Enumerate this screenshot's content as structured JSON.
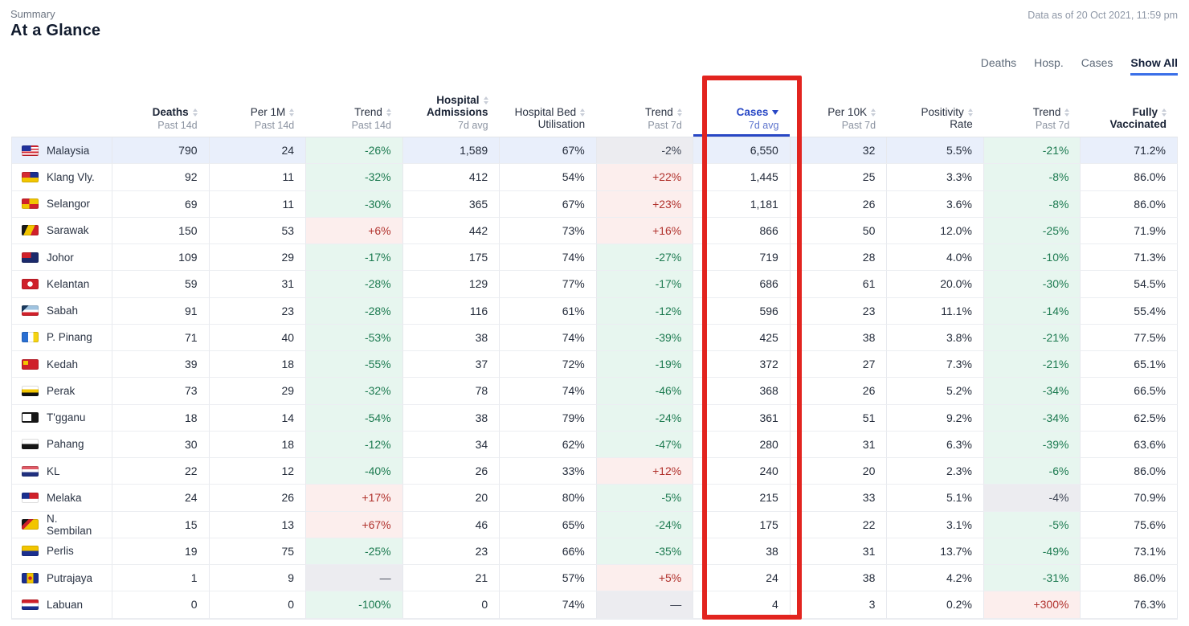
{
  "page": {
    "eyebrow": "Summary",
    "title": "At a Glance",
    "data_as_of": "Data as of 20 Oct 2021, 11:59 pm"
  },
  "view_tabs": [
    {
      "label": "Deaths",
      "active": false
    },
    {
      "label": "Hosp.",
      "active": false
    },
    {
      "label": "Cases",
      "active": false
    },
    {
      "label": "Show All",
      "active": true
    }
  ],
  "colors": {
    "accent_blue": "#2847c5",
    "show_all_underline": "#3a6fe8",
    "trend_down_green_text": "#1c7a50",
    "trend_down_green_bg": "#e7f6ef",
    "trend_up_red_text": "#b0312c",
    "trend_up_red_bg": "#fceeed",
    "neutral_bg": "#ececf0",
    "highlight_row_bg": "#e9effb",
    "cases_annotation_red": "#e2241f"
  },
  "table": {
    "columns": [
      {
        "key": "region",
        "lines": [],
        "sub": "",
        "bold": false,
        "sortable": false,
        "accent": false,
        "sorted": null
      },
      {
        "key": "deaths",
        "lines": [
          "Deaths"
        ],
        "sub": "Past 14d",
        "bold": true,
        "sortable": true,
        "accent": false,
        "sorted": null
      },
      {
        "key": "per-1m",
        "lines": [
          "Per 1M"
        ],
        "sub": "Past 14d",
        "bold": false,
        "sortable": true,
        "accent": false,
        "sorted": null
      },
      {
        "key": "trend-14d",
        "lines": [
          "Trend"
        ],
        "sub": "Past 14d",
        "bold": false,
        "sortable": true,
        "accent": false,
        "sorted": null
      },
      {
        "key": "hospital-admissions",
        "lines": [
          "Hospital",
          "Admissions"
        ],
        "sub": "7d avg",
        "bold": true,
        "sortable": true,
        "accent": false,
        "sorted": null
      },
      {
        "key": "hospital-bed-utilisation",
        "lines": [
          "Hospital Bed",
          "Utilisation"
        ],
        "sub": "",
        "bold": false,
        "sortable": true,
        "accent": false,
        "sorted": null
      },
      {
        "key": "trend-7d-hosp",
        "lines": [
          "Trend"
        ],
        "sub": "Past 7d",
        "bold": false,
        "sortable": true,
        "accent": false,
        "sorted": null
      },
      {
        "key": "cases",
        "lines": [
          "Cases"
        ],
        "sub": "7d avg",
        "bold": true,
        "sortable": true,
        "accent": true,
        "sorted": "desc"
      },
      {
        "key": "per-10k",
        "lines": [
          "Per 10K"
        ],
        "sub": "Past 7d",
        "bold": false,
        "sortable": true,
        "accent": false,
        "sorted": null
      },
      {
        "key": "positivity-rate",
        "lines": [
          "Positivity",
          "Rate"
        ],
        "sub": "",
        "bold": false,
        "sortable": true,
        "accent": false,
        "sorted": null
      },
      {
        "key": "trend-7d-cases",
        "lines": [
          "Trend"
        ],
        "sub": "Past 7d",
        "bold": false,
        "sortable": true,
        "accent": false,
        "sorted": null
      },
      {
        "key": "fully-vaccinated",
        "lines": [
          "Fully",
          "Vaccinated"
        ],
        "sub": "",
        "bold": true,
        "sortable": true,
        "accent": false,
        "sorted": null
      }
    ],
    "rows": [
      {
        "region": "Malaysia",
        "flag": "my",
        "highlight": true,
        "cells": [
          {
            "v": "790"
          },
          {
            "v": "24"
          },
          {
            "v": "-26%",
            "tone": "good"
          },
          {
            "v": "1,589"
          },
          {
            "v": "67%"
          },
          {
            "v": "-2%",
            "tone": "neutral"
          },
          {
            "v": "6,550"
          },
          {
            "v": "32"
          },
          {
            "v": "5.5%"
          },
          {
            "v": "-21%",
            "tone": "good"
          },
          {
            "v": "71.2%"
          }
        ]
      },
      {
        "region": "Klang Vly.",
        "flag": "kv",
        "highlight": false,
        "cells": [
          {
            "v": "92"
          },
          {
            "v": "11"
          },
          {
            "v": "-32%",
            "tone": "good"
          },
          {
            "v": "412"
          },
          {
            "v": "54%"
          },
          {
            "v": "+22%",
            "tone": "bad"
          },
          {
            "v": "1,445"
          },
          {
            "v": "25"
          },
          {
            "v": "3.3%"
          },
          {
            "v": "-8%",
            "tone": "good"
          },
          {
            "v": "86.0%"
          }
        ]
      },
      {
        "region": "Selangor",
        "flag": "sgr",
        "highlight": false,
        "cells": [
          {
            "v": "69"
          },
          {
            "v": "11"
          },
          {
            "v": "-30%",
            "tone": "good"
          },
          {
            "v": "365"
          },
          {
            "v": "67%"
          },
          {
            "v": "+23%",
            "tone": "bad"
          },
          {
            "v": "1,181"
          },
          {
            "v": "26"
          },
          {
            "v": "3.6%"
          },
          {
            "v": "-8%",
            "tone": "good"
          },
          {
            "v": "86.0%"
          }
        ]
      },
      {
        "region": "Sarawak",
        "flag": "swk",
        "highlight": false,
        "cells": [
          {
            "v": "150"
          },
          {
            "v": "53"
          },
          {
            "v": "+6%",
            "tone": "bad"
          },
          {
            "v": "442"
          },
          {
            "v": "73%"
          },
          {
            "v": "+16%",
            "tone": "bad"
          },
          {
            "v": "866"
          },
          {
            "v": "50"
          },
          {
            "v": "12.0%"
          },
          {
            "v": "-25%",
            "tone": "good"
          },
          {
            "v": "71.9%"
          }
        ]
      },
      {
        "region": "Johor",
        "flag": "jhr",
        "highlight": false,
        "cells": [
          {
            "v": "109"
          },
          {
            "v": "29"
          },
          {
            "v": "-17%",
            "tone": "good"
          },
          {
            "v": "175"
          },
          {
            "v": "74%"
          },
          {
            "v": "-27%",
            "tone": "good"
          },
          {
            "v": "719"
          },
          {
            "v": "28"
          },
          {
            "v": "4.0%"
          },
          {
            "v": "-10%",
            "tone": "good"
          },
          {
            "v": "71.3%"
          }
        ]
      },
      {
        "region": "Kelantan",
        "flag": "ktn",
        "highlight": false,
        "cells": [
          {
            "v": "59"
          },
          {
            "v": "31"
          },
          {
            "v": "-28%",
            "tone": "good"
          },
          {
            "v": "129"
          },
          {
            "v": "77%"
          },
          {
            "v": "-17%",
            "tone": "good"
          },
          {
            "v": "686"
          },
          {
            "v": "61"
          },
          {
            "v": "20.0%"
          },
          {
            "v": "-30%",
            "tone": "good"
          },
          {
            "v": "54.5%"
          }
        ]
      },
      {
        "region": "Sabah",
        "flag": "sbh",
        "highlight": false,
        "cells": [
          {
            "v": "91"
          },
          {
            "v": "23"
          },
          {
            "v": "-28%",
            "tone": "good"
          },
          {
            "v": "116"
          },
          {
            "v": "61%"
          },
          {
            "v": "-12%",
            "tone": "good"
          },
          {
            "v": "596"
          },
          {
            "v": "23"
          },
          {
            "v": "11.1%"
          },
          {
            "v": "-14%",
            "tone": "good"
          },
          {
            "v": "55.4%"
          }
        ]
      },
      {
        "region": "P. Pinang",
        "flag": "png",
        "highlight": false,
        "cells": [
          {
            "v": "71"
          },
          {
            "v": "40"
          },
          {
            "v": "-53%",
            "tone": "good"
          },
          {
            "v": "38"
          },
          {
            "v": "74%"
          },
          {
            "v": "-39%",
            "tone": "good"
          },
          {
            "v": "425"
          },
          {
            "v": "38"
          },
          {
            "v": "3.8%"
          },
          {
            "v": "-21%",
            "tone": "good"
          },
          {
            "v": "77.5%"
          }
        ]
      },
      {
        "region": "Kedah",
        "flag": "kdh",
        "highlight": false,
        "cells": [
          {
            "v": "39"
          },
          {
            "v": "18"
          },
          {
            "v": "-55%",
            "tone": "good"
          },
          {
            "v": "37"
          },
          {
            "v": "72%"
          },
          {
            "v": "-19%",
            "tone": "good"
          },
          {
            "v": "372"
          },
          {
            "v": "27"
          },
          {
            "v": "7.3%"
          },
          {
            "v": "-21%",
            "tone": "good"
          },
          {
            "v": "65.1%"
          }
        ]
      },
      {
        "region": "Perak",
        "flag": "prk",
        "highlight": false,
        "cells": [
          {
            "v": "73"
          },
          {
            "v": "29"
          },
          {
            "v": "-32%",
            "tone": "good"
          },
          {
            "v": "78"
          },
          {
            "v": "74%"
          },
          {
            "v": "-46%",
            "tone": "good"
          },
          {
            "v": "368"
          },
          {
            "v": "26"
          },
          {
            "v": "5.2%"
          },
          {
            "v": "-34%",
            "tone": "good"
          },
          {
            "v": "66.5%"
          }
        ]
      },
      {
        "region": "T'gganu",
        "flag": "trg",
        "highlight": false,
        "cells": [
          {
            "v": "18"
          },
          {
            "v": "14"
          },
          {
            "v": "-54%",
            "tone": "good"
          },
          {
            "v": "38"
          },
          {
            "v": "79%"
          },
          {
            "v": "-24%",
            "tone": "good"
          },
          {
            "v": "361"
          },
          {
            "v": "51"
          },
          {
            "v": "9.2%"
          },
          {
            "v": "-34%",
            "tone": "good"
          },
          {
            "v": "62.5%"
          }
        ]
      },
      {
        "region": "Pahang",
        "flag": "phg",
        "highlight": false,
        "cells": [
          {
            "v": "30"
          },
          {
            "v": "18"
          },
          {
            "v": "-12%",
            "tone": "good"
          },
          {
            "v": "34"
          },
          {
            "v": "62%"
          },
          {
            "v": "-47%",
            "tone": "good"
          },
          {
            "v": "280"
          },
          {
            "v": "31"
          },
          {
            "v": "6.3%"
          },
          {
            "v": "-39%",
            "tone": "good"
          },
          {
            "v": "63.6%"
          }
        ]
      },
      {
        "region": "KL",
        "flag": "kul",
        "highlight": false,
        "cells": [
          {
            "v": "22"
          },
          {
            "v": "12"
          },
          {
            "v": "-40%",
            "tone": "good"
          },
          {
            "v": "26"
          },
          {
            "v": "33%"
          },
          {
            "v": "+12%",
            "tone": "bad"
          },
          {
            "v": "240"
          },
          {
            "v": "20"
          },
          {
            "v": "2.3%"
          },
          {
            "v": "-6%",
            "tone": "good"
          },
          {
            "v": "86.0%"
          }
        ]
      },
      {
        "region": "Melaka",
        "flag": "mlk",
        "highlight": false,
        "cells": [
          {
            "v": "24"
          },
          {
            "v": "26"
          },
          {
            "v": "+17%",
            "tone": "bad"
          },
          {
            "v": "20"
          },
          {
            "v": "80%"
          },
          {
            "v": "-5%",
            "tone": "good"
          },
          {
            "v": "215"
          },
          {
            "v": "33"
          },
          {
            "v": "5.1%"
          },
          {
            "v": "-4%",
            "tone": "neutral"
          },
          {
            "v": "70.9%"
          }
        ]
      },
      {
        "region": "N. Sembilan",
        "flag": "nsn",
        "highlight": false,
        "cells": [
          {
            "v": "15"
          },
          {
            "v": "13"
          },
          {
            "v": "+67%",
            "tone": "bad"
          },
          {
            "v": "46"
          },
          {
            "v": "65%"
          },
          {
            "v": "-24%",
            "tone": "good"
          },
          {
            "v": "175"
          },
          {
            "v": "22"
          },
          {
            "v": "3.1%"
          },
          {
            "v": "-5%",
            "tone": "good"
          },
          {
            "v": "75.6%"
          }
        ]
      },
      {
        "region": "Perlis",
        "flag": "pls",
        "highlight": false,
        "cells": [
          {
            "v": "19"
          },
          {
            "v": "75"
          },
          {
            "v": "-25%",
            "tone": "good"
          },
          {
            "v": "23"
          },
          {
            "v": "66%"
          },
          {
            "v": "-35%",
            "tone": "good"
          },
          {
            "v": "38"
          },
          {
            "v": "31"
          },
          {
            "v": "13.7%"
          },
          {
            "v": "-49%",
            "tone": "good"
          },
          {
            "v": "73.1%"
          }
        ]
      },
      {
        "region": "Putrajaya",
        "flag": "pjy",
        "highlight": false,
        "cells": [
          {
            "v": "1"
          },
          {
            "v": "9"
          },
          {
            "v": "—",
            "tone": "neutral"
          },
          {
            "v": "21"
          },
          {
            "v": "57%"
          },
          {
            "v": "+5%",
            "tone": "bad"
          },
          {
            "v": "24"
          },
          {
            "v": "38"
          },
          {
            "v": "4.2%"
          },
          {
            "v": "-31%",
            "tone": "good"
          },
          {
            "v": "86.0%"
          }
        ]
      },
      {
        "region": "Labuan",
        "flag": "lbn",
        "highlight": false,
        "cells": [
          {
            "v": "0"
          },
          {
            "v": "0"
          },
          {
            "v": "-100%",
            "tone": "good"
          },
          {
            "v": "0"
          },
          {
            "v": "74%"
          },
          {
            "v": "—",
            "tone": "neutral"
          },
          {
            "v": "4"
          },
          {
            "v": "3"
          },
          {
            "v": "0.2%"
          },
          {
            "v": "+300%",
            "tone": "bad"
          },
          {
            "v": "76.3%"
          }
        ]
      }
    ]
  }
}
